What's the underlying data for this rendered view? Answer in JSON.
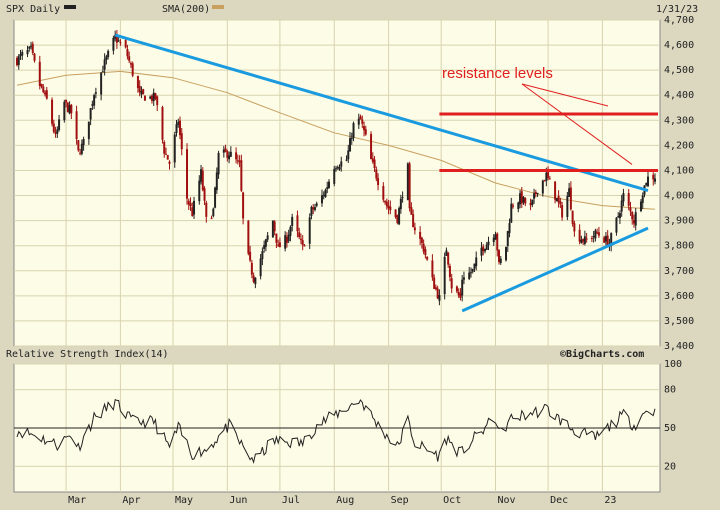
{
  "header": {
    "symbol_label": "SPX Daily",
    "sma_label": "SMA(200)",
    "date_label": "1/31/23"
  },
  "colors": {
    "background": "#dcd8c0",
    "plot_bg": "#fdfce6",
    "grid": "#d8d3b0",
    "candle": "#222222",
    "candle_down": "#a01010",
    "sma": "#c8a060",
    "trendline": "#1a9be0",
    "resistance": "#e02020",
    "rsi_line": "#222222"
  },
  "icons": {
    "symbol_swatch": "black-swatch",
    "sma_swatch": "gold-swatch"
  },
  "rsi_panel": {
    "title": "Relative Strength Index(14)",
    "credit": "©BigCharts.com"
  },
  "chart_data": [
    {
      "type": "candlestick",
      "title": "SPX Daily",
      "ylim": [
        3400,
        4700
      ],
      "ytick_labels": [
        "3,400",
        "3,500",
        "3,600",
        "3,700",
        "3,800",
        "3,900",
        "4,000",
        "4,100",
        "4,200",
        "4,300",
        "4,400",
        "4,500",
        "4,600",
        "4,700"
      ],
      "month_labels": [
        "Mar",
        "Apr",
        "May",
        "Jun",
        "Jul",
        "Aug",
        "Sep",
        "Oct",
        "Nov",
        "Dec",
        "23"
      ],
      "grid": true,
      "series": [
        {
          "name": "SPX Daily",
          "anchors": [
            [
              "2022-02-01",
              4540
            ],
            [
              "2022-02-04",
              4560
            ],
            [
              "2022-02-09",
              4580
            ],
            [
              "2022-02-14",
              4440
            ],
            [
              "2022-02-18",
              4380
            ],
            [
              "2022-02-23",
              4230
            ],
            [
              "2022-02-28",
              4370
            ],
            [
              "2022-03-04",
              4330
            ],
            [
              "2022-03-08",
              4170
            ],
            [
              "2022-03-11",
              4210
            ],
            [
              "2022-03-17",
              4410
            ],
            [
              "2022-03-22",
              4510
            ],
            [
              "2022-03-29",
              4630
            ],
            [
              "2022-04-04",
              4580
            ],
            [
              "2022-04-08",
              4490
            ],
            [
              "2022-04-12",
              4400
            ],
            [
              "2022-04-18",
              4390
            ],
            [
              "2022-04-21",
              4390
            ],
            [
              "2022-04-26",
              4180
            ],
            [
              "2022-04-29",
              4130
            ],
            [
              "2022-05-04",
              4300
            ],
            [
              "2022-05-09",
              3990
            ],
            [
              "2022-05-12",
              3930
            ],
            [
              "2022-05-17",
              4090
            ],
            [
              "2022-05-20",
              3900
            ],
            [
              "2022-05-24",
              3940
            ],
            [
              "2022-05-27",
              4160
            ],
            [
              "2022-06-02",
              4170
            ],
            [
              "2022-06-08",
              4120
            ],
            [
              "2022-06-10",
              3900
            ],
            [
              "2022-06-13",
              3750
            ],
            [
              "2022-06-16",
              3670
            ],
            [
              "2022-06-21",
              3770
            ],
            [
              "2022-06-27",
              3900
            ],
            [
              "2022-06-30",
              3790
            ],
            [
              "2022-07-05",
              3830
            ],
            [
              "2022-07-08",
              3900
            ],
            [
              "2022-07-14",
              3790
            ],
            [
              "2022-07-19",
              3940
            ],
            [
              "2022-07-22",
              3960
            ],
            [
              "2022-07-27",
              4020
            ],
            [
              "2022-08-01",
              4120
            ],
            [
              "2022-08-08",
              4140
            ],
            [
              "2022-08-12",
              4280
            ],
            [
              "2022-08-16",
              4300
            ],
            [
              "2022-08-19",
              4230
            ],
            [
              "2022-08-22",
              4140
            ],
            [
              "2022-08-26",
              4060
            ],
            [
              "2022-08-31",
              3960
            ],
            [
              "2022-09-06",
              3910
            ],
            [
              "2022-09-12",
              4110
            ],
            [
              "2022-09-13",
              3930
            ],
            [
              "2022-09-16",
              3870
            ],
            [
              "2022-09-21",
              3790
            ],
            [
              "2022-09-26",
              3660
            ],
            [
              "2022-09-30",
              3590
            ],
            [
              "2022-10-04",
              3790
            ],
            [
              "2022-10-07",
              3640
            ],
            [
              "2022-10-12",
              3590
            ],
            [
              "2022-10-13",
              3670
            ],
            [
              "2022-10-19",
              3700
            ],
            [
              "2022-10-24",
              3790
            ],
            [
              "2022-10-27",
              3810
            ],
            [
              "2022-11-01",
              3860
            ],
            [
              "2022-11-03",
              3720
            ],
            [
              "2022-11-07",
              3800
            ],
            [
              "2022-11-10",
              3960
            ],
            [
              "2022-11-15",
              3990
            ],
            [
              "2022-11-21",
              3950
            ],
            [
              "2022-11-25",
              4030
            ],
            [
              "2022-11-30",
              4080
            ],
            [
              "2022-12-05",
              4000
            ],
            [
              "2022-12-09",
              3930
            ],
            [
              "2022-12-13",
              4020
            ],
            [
              "2022-12-16",
              3850
            ],
            [
              "2022-12-22",
              3820
            ],
            [
              "2022-12-29",
              3850
            ],
            [
              "2023-01-05",
              3810
            ],
            [
              "2023-01-10",
              3920
            ],
            [
              "2023-01-13",
              4000
            ],
            [
              "2023-01-19",
              3900
            ],
            [
              "2023-01-24",
              4020
            ],
            [
              "2023-01-27",
              4070
            ],
            [
              "2023-01-31",
              4077
            ]
          ]
        },
        {
          "name": "SMA(200)",
          "anchors": [
            [
              "2022-02-01",
              4440
            ],
            [
              "2022-03-01",
              4480
            ],
            [
              "2022-04-01",
              4495
            ],
            [
              "2022-05-01",
              4470
            ],
            [
              "2022-06-01",
              4410
            ],
            [
              "2022-07-01",
              4330
            ],
            [
              "2022-08-01",
              4250
            ],
            [
              "2022-09-01",
              4200
            ],
            [
              "2022-10-01",
              4140
            ],
            [
              "2022-11-01",
              4050
            ],
            [
              "2022-12-01",
              3995
            ],
            [
              "2023-01-01",
              3960
            ],
            [
              "2023-01-31",
              3945
            ]
          ]
        }
      ],
      "annotations": {
        "text": "resistance levels",
        "trendlines": [
          {
            "name": "downtrend",
            "from": [
              "2022-03-29",
              4640
            ],
            "to": [
              "2023-01-27",
              4020
            ]
          },
          {
            "name": "uptrend",
            "from": [
              "2022-10-13",
              3540
            ],
            "to": [
              "2023-01-27",
              3870
            ]
          }
        ],
        "resistance_levels": [
          4325,
          4100
        ]
      }
    },
    {
      "type": "line",
      "title": "Relative Strength Index(14)",
      "ylim": [
        0,
        100
      ],
      "ytick_labels": [
        "20",
        "50",
        "80",
        "100"
      ],
      "reference_line": 50,
      "series": [
        {
          "name": "Relative Strength Index(14)",
          "anchors": [
            [
              "2022-02-01",
              48
            ],
            [
              "2022-02-10",
              45
            ],
            [
              "2022-02-24",
              37
            ],
            [
              "2022-03-04",
              45
            ],
            [
              "2022-03-08",
              35
            ],
            [
              "2022-03-17",
              58
            ],
            [
              "2022-03-29",
              70
            ],
            [
              "2022-04-08",
              55
            ],
            [
              "2022-04-20",
              55
            ],
            [
              "2022-04-29",
              35
            ],
            [
              "2022-05-04",
              50
            ],
            [
              "2022-05-12",
              30
            ],
            [
              "2022-05-20",
              33
            ],
            [
              "2022-06-02",
              52
            ],
            [
              "2022-06-13",
              28
            ],
            [
              "2022-06-17",
              25
            ],
            [
              "2022-06-27",
              40
            ],
            [
              "2022-07-14",
              38
            ],
            [
              "2022-07-22",
              52
            ],
            [
              "2022-08-01",
              60
            ],
            [
              "2022-08-16",
              72
            ],
            [
              "2022-08-26",
              52
            ],
            [
              "2022-09-06",
              35
            ],
            [
              "2022-09-12",
              56
            ],
            [
              "2022-09-16",
              38
            ],
            [
              "2022-09-30",
              28
            ],
            [
              "2022-10-04",
              42
            ],
            [
              "2022-10-12",
              30
            ],
            [
              "2022-10-20",
              42
            ],
            [
              "2022-11-01",
              58
            ],
            [
              "2022-11-03",
              45
            ],
            [
              "2022-11-10",
              57
            ],
            [
              "2022-11-30",
              65
            ],
            [
              "2022-12-09",
              55
            ],
            [
              "2022-12-16",
              48
            ],
            [
              "2022-12-28",
              42
            ],
            [
              "2023-01-13",
              60
            ],
            [
              "2023-01-19",
              52
            ],
            [
              "2023-01-27",
              65
            ],
            [
              "2023-01-31",
              62
            ]
          ]
        }
      ]
    }
  ]
}
